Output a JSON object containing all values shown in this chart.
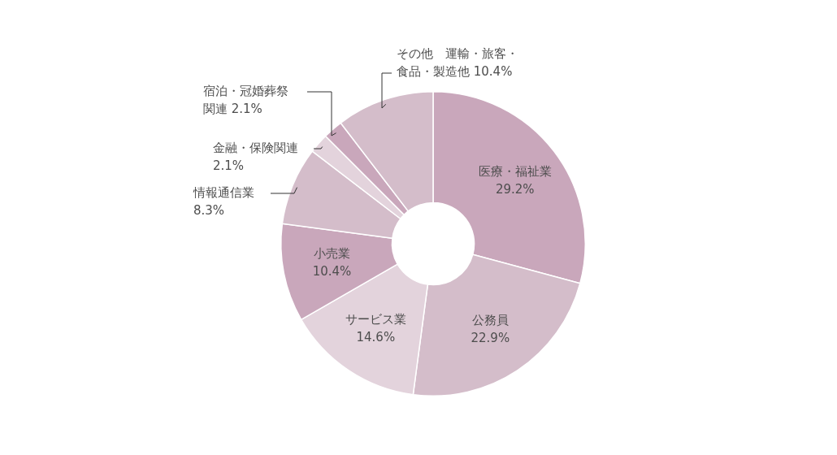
{
  "chart_data": {
    "type": "donut",
    "categories": [
      "医療・福祉業",
      "公務員",
      "サービス業",
      "小売業",
      "情報通信業",
      "金融・保険関連",
      "宿泊・冠婚葬祭関連",
      "その他　運輸・旅客・食品・製造他"
    ],
    "values": [
      29.2,
      22.9,
      14.6,
      10.4,
      8.3,
      2.1,
      2.1,
      10.4
    ],
    "value_labels": [
      "29.2%",
      "22.9%",
      "14.6%",
      "10.4%",
      "8.3%",
      "2.1%",
      "2.1%",
      "10.4%"
    ],
    "colors": [
      "#c9a7bb",
      "#d4bdca",
      "#e3d3dc",
      "#c9a7bb",
      "#d4bdca",
      "#e3d3dc",
      "#c9a7bb",
      "#d4bdca"
    ],
    "legend": false
  }
}
